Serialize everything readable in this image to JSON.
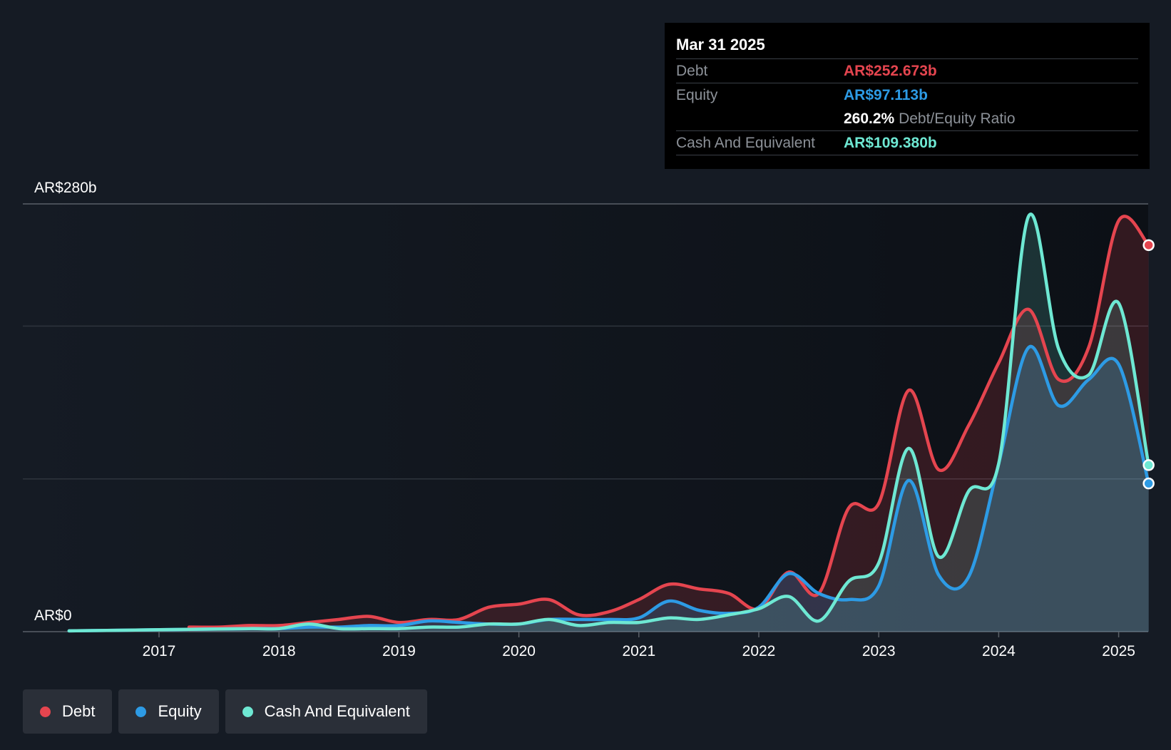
{
  "tooltip": {
    "date": "Mar 31 2025",
    "rows": [
      {
        "label": "Debt",
        "value": "AR$252.673b"
      },
      {
        "label": "Equity",
        "value": "AR$97.113b"
      },
      {
        "label": "",
        "value": "260.2%",
        "suffix": "Debt/Equity Ratio"
      },
      {
        "label": "Cash And Equivalent",
        "value": "AR$109.380b"
      }
    ]
  },
  "legend": [
    {
      "label": "Debt",
      "color": "#e5454f"
    },
    {
      "label": "Equity",
      "color": "#2d9be5"
    },
    {
      "label": "Cash And Equivalent",
      "color": "#6ee8d3"
    }
  ],
  "chart_data": {
    "type": "area",
    "y_top_label": "AR$280b",
    "y_bottom_label": "AR$0",
    "ylim": [
      0,
      280
    ],
    "y_unit": "AR$ billions",
    "grid": true,
    "x_tick_labels": [
      "2017",
      "2018",
      "2019",
      "2020",
      "2021",
      "2022",
      "2023",
      "2024",
      "2025"
    ],
    "x_ticks": [
      2017,
      2018,
      2019,
      2020,
      2021,
      2022,
      2023,
      2024,
      2025
    ],
    "xlim": [
      2015.9,
      2025.25
    ],
    "legend_position": "bottom-left",
    "series": [
      {
        "name": "Debt",
        "color": "#e5454f",
        "points": [
          [
            2017.25,
            3
          ],
          [
            2017.5,
            3
          ],
          [
            2017.75,
            4
          ],
          [
            2018.0,
            4
          ],
          [
            2018.25,
            6
          ],
          [
            2018.5,
            8
          ],
          [
            2018.75,
            10
          ],
          [
            2019.0,
            6
          ],
          [
            2019.25,
            8
          ],
          [
            2019.5,
            8
          ],
          [
            2019.75,
            16
          ],
          [
            2020.0,
            18
          ],
          [
            2020.25,
            21
          ],
          [
            2020.5,
            11
          ],
          [
            2020.75,
            13
          ],
          [
            2021.0,
            21
          ],
          [
            2021.25,
            31
          ],
          [
            2021.5,
            28
          ],
          [
            2021.75,
            25
          ],
          [
            2022.0,
            15
          ],
          [
            2022.25,
            39
          ],
          [
            2022.5,
            25
          ],
          [
            2022.75,
            81
          ],
          [
            2023.0,
            84
          ],
          [
            2023.25,
            158
          ],
          [
            2023.5,
            106
          ],
          [
            2023.75,
            135
          ],
          [
            2024.0,
            176
          ],
          [
            2024.25,
            211
          ],
          [
            2024.5,
            165
          ],
          [
            2024.75,
            186
          ],
          [
            2025.0,
            269
          ],
          [
            2025.25,
            253
          ]
        ]
      },
      {
        "name": "Equity",
        "color": "#2d9be5",
        "points": [
          [
            2016.25,
            0.5
          ],
          [
            2016.75,
            1
          ],
          [
            2017.25,
            1.5
          ],
          [
            2017.75,
            2
          ],
          [
            2018.0,
            2
          ],
          [
            2018.25,
            3
          ],
          [
            2018.5,
            3
          ],
          [
            2018.75,
            4
          ],
          [
            2019.0,
            4
          ],
          [
            2019.25,
            7
          ],
          [
            2019.5,
            6
          ],
          [
            2019.75,
            5
          ],
          [
            2020.0,
            5
          ],
          [
            2020.25,
            8
          ],
          [
            2020.5,
            8
          ],
          [
            2020.75,
            8
          ],
          [
            2021.0,
            9
          ],
          [
            2021.25,
            20
          ],
          [
            2021.5,
            14
          ],
          [
            2021.75,
            12
          ],
          [
            2022.0,
            16
          ],
          [
            2022.25,
            38
          ],
          [
            2022.5,
            25
          ],
          [
            2022.75,
            21
          ],
          [
            2023.0,
            30
          ],
          [
            2023.25,
            99
          ],
          [
            2023.5,
            37
          ],
          [
            2023.75,
            36
          ],
          [
            2024.0,
            110
          ],
          [
            2024.25,
            186
          ],
          [
            2024.5,
            148
          ],
          [
            2024.75,
            165
          ],
          [
            2025.0,
            175
          ],
          [
            2025.25,
            97
          ]
        ]
      },
      {
        "name": "Cash And Equivalent",
        "color": "#6ee8d3",
        "points": [
          [
            2016.25,
            0.5
          ],
          [
            2016.75,
            1
          ],
          [
            2017.25,
            1.5
          ],
          [
            2017.75,
            2
          ],
          [
            2018.0,
            2
          ],
          [
            2018.25,
            5
          ],
          [
            2018.5,
            2
          ],
          [
            2018.75,
            2
          ],
          [
            2019.0,
            2
          ],
          [
            2019.25,
            3
          ],
          [
            2019.5,
            3
          ],
          [
            2019.75,
            5
          ],
          [
            2020.0,
            5
          ],
          [
            2020.25,
            8
          ],
          [
            2020.5,
            4
          ],
          [
            2020.75,
            6
          ],
          [
            2021.0,
            6
          ],
          [
            2021.25,
            9
          ],
          [
            2021.5,
            8
          ],
          [
            2021.75,
            11
          ],
          [
            2022.0,
            15
          ],
          [
            2022.25,
            23
          ],
          [
            2022.5,
            7
          ],
          [
            2022.75,
            33
          ],
          [
            2023.0,
            45
          ],
          [
            2023.25,
            120
          ],
          [
            2023.5,
            49
          ],
          [
            2023.75,
            92
          ],
          [
            2024.0,
            110
          ],
          [
            2024.25,
            272
          ],
          [
            2024.5,
            185
          ],
          [
            2024.75,
            168
          ],
          [
            2025.0,
            215
          ],
          [
            2025.25,
            109
          ]
        ]
      }
    ]
  }
}
